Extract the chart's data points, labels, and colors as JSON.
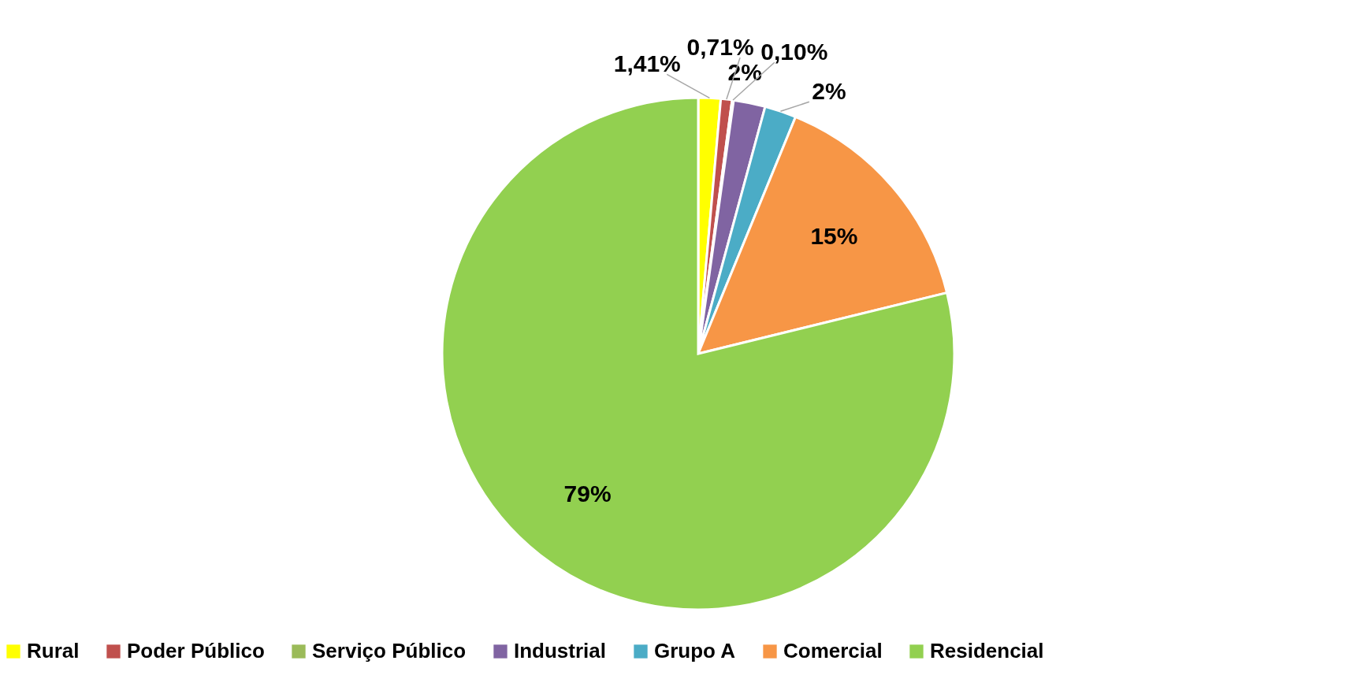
{
  "chart_data": {
    "type": "pie",
    "categories": [
      "Rural",
      "Poder Público",
      "Serviço Público",
      "Industrial",
      "Grupo A",
      "Comercial",
      "Residencial"
    ],
    "values": [
      1.41,
      0.71,
      0.1,
      2,
      2,
      15,
      79
    ],
    "value_labels": [
      "1,41%",
      "0,71%",
      "0,10%",
      "2%",
      "2%",
      "15%",
      "79%"
    ],
    "colors": [
      "#ffff00",
      "#c0504d",
      "#9bbb59",
      "#8064a2",
      "#4bacc6",
      "#f79646",
      "#92d050"
    ],
    "legend": "bottom"
  }
}
